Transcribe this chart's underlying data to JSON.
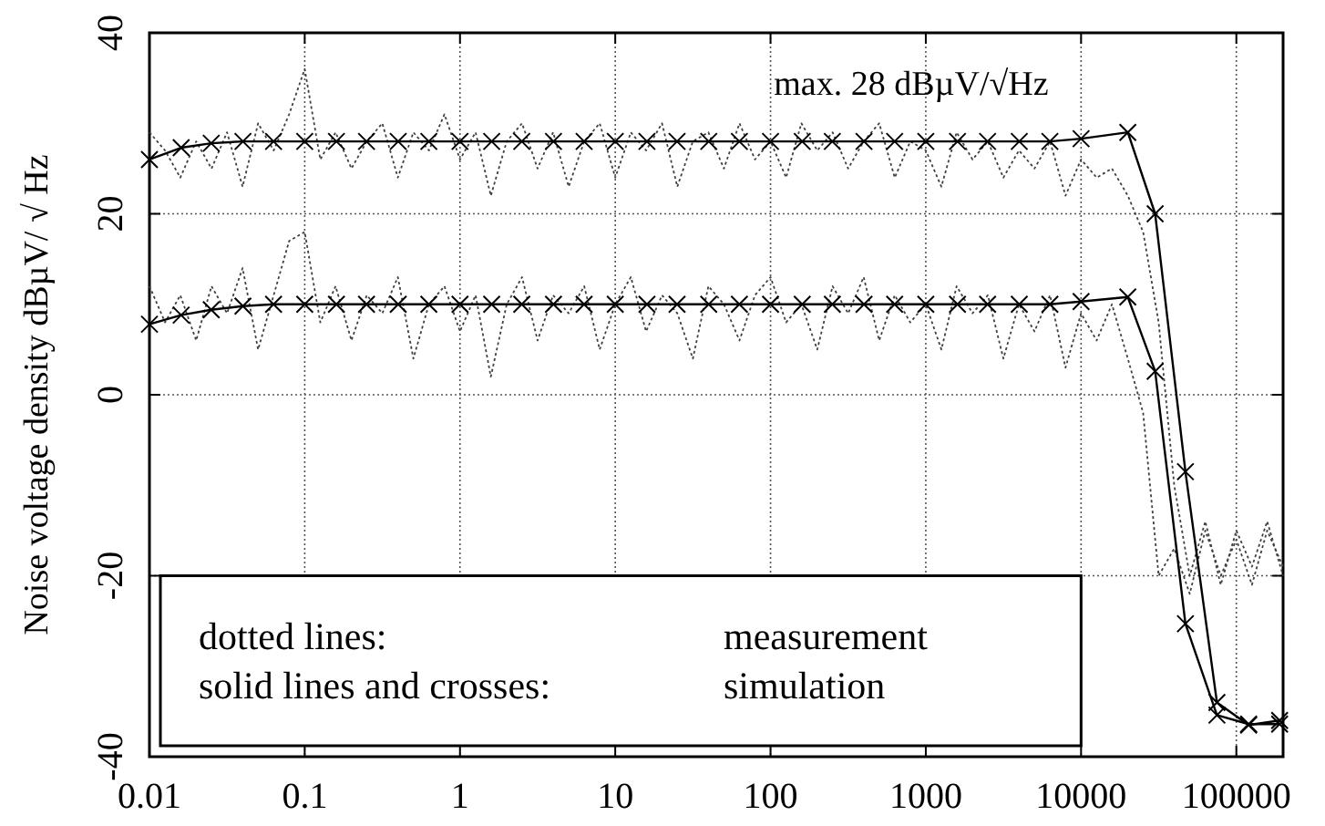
{
  "chart_data": {
    "type": "line",
    "ylabel": "Noise voltage density dBµV/ √ Hz",
    "xlim": [
      0.01,
      200000
    ],
    "ylim": [
      -40,
      40
    ],
    "xticks": [
      0.01,
      0.1,
      1,
      10,
      100,
      1000,
      10000,
      100000
    ],
    "yticks": [
      -40,
      -20,
      0,
      20,
      40
    ],
    "log": "x",
    "grid": true,
    "annotations": [
      "max. 28 dBµV/√Hz",
      "dotted lines:",
      "measurement",
      "solid lines and crosses:",
      "simulation"
    ],
    "x": [
      0.01,
      0.0126,
      0.0158,
      0.02,
      0.0251,
      0.0316,
      0.0398,
      0.0501,
      0.0631,
      0.0794,
      0.1,
      0.126,
      0.158,
      0.2,
      0.251,
      0.316,
      0.398,
      0.501,
      0.631,
      0.794,
      1,
      1.26,
      1.58,
      2,
      2.51,
      3.16,
      3.98,
      5.01,
      6.31,
      7.94,
      10,
      12.6,
      15.8,
      20,
      25.1,
      31.6,
      39.8,
      50.1,
      63.1,
      79.4,
      100,
      126,
      158,
      200,
      251,
      316,
      398,
      501,
      631,
      794,
      1000,
      1260,
      1580,
      2000,
      2510,
      3160,
      3980,
      5010,
      6310,
      7940,
      10000,
      12600,
      15800,
      20000,
      25100,
      31600,
      39800,
      50100,
      63100,
      79400,
      100000,
      126000,
      158000,
      200000
    ],
    "series": [
      {
        "color": "#404040",
        "line_style": "dotted",
        "marker": "none",
        "values": [
          29,
          27,
          24,
          28,
          25,
          29,
          23,
          30,
          27,
          31,
          36,
          26,
          29,
          25,
          28,
          30,
          24,
          29,
          27,
          31,
          26,
          29,
          22,
          28,
          30,
          25,
          29,
          23,
          28,
          30,
          24,
          29,
          27,
          30,
          23,
          28,
          29,
          25,
          30,
          26,
          28,
          24,
          30,
          27,
          29,
          25,
          28,
          30,
          24,
          28,
          27,
          23,
          29,
          26,
          28,
          24,
          27,
          25,
          28,
          22,
          26,
          24,
          25,
          22,
          18,
          8,
          -10,
          -20,
          -14,
          -21,
          -15,
          -19,
          -14,
          -20
        ]
      },
      {
        "color": "#404040",
        "line_style": "dotted",
        "marker": "none",
        "values": [
          12,
          8,
          11,
          6,
          12,
          9,
          14,
          5,
          11,
          17,
          18,
          8,
          12,
          6,
          11,
          9,
          13,
          4,
          10,
          12,
          7,
          11,
          2,
          10,
          13,
          6,
          11,
          9,
          12,
          5,
          10,
          13,
          7,
          11,
          9,
          4,
          12,
          10,
          6,
          11,
          13,
          8,
          10,
          5,
          12,
          9,
          13,
          6,
          11,
          8,
          10,
          5,
          12,
          9,
          11,
          4,
          10,
          7,
          11,
          3,
          9,
          6,
          10,
          4,
          -2,
          -20,
          -17,
          -22,
          -15,
          -20,
          -16,
          -21,
          -15,
          -19
        ]
      },
      {
        "color": "#000000",
        "line_style": "solid",
        "marker": "cross",
        "x": [
          0.01,
          0.016,
          0.025,
          0.04,
          0.063,
          0.1,
          0.16,
          0.25,
          0.4,
          0.63,
          1,
          1.6,
          2.5,
          4,
          6.3,
          10,
          16,
          25,
          40,
          63,
          100,
          160,
          250,
          400,
          630,
          1000,
          1600,
          2500,
          4000,
          6300,
          10000,
          20000,
          30000,
          47000,
          75000,
          120000,
          190000
        ],
        "values": [
          26,
          27.3,
          27.8,
          28,
          28,
          28,
          28,
          28,
          28,
          28,
          28,
          28,
          28,
          28,
          28,
          28,
          28,
          28,
          28,
          28,
          28,
          28,
          28,
          28,
          28,
          28,
          28,
          28,
          28,
          28,
          28.3,
          29,
          20,
          -8.5,
          -34,
          -36.5,
          -36
        ]
      },
      {
        "color": "#000000",
        "line_style": "solid",
        "marker": "cross",
        "x": [
          0.01,
          0.016,
          0.025,
          0.04,
          0.063,
          0.1,
          0.16,
          0.25,
          0.4,
          0.63,
          1,
          1.6,
          2.5,
          4,
          6.3,
          10,
          16,
          25,
          40,
          63,
          100,
          160,
          250,
          400,
          630,
          1000,
          1600,
          2500,
          4000,
          6300,
          10000,
          20000,
          30000,
          47000,
          75000,
          120000,
          190000
        ],
        "values": [
          7.8,
          8.8,
          9.4,
          9.8,
          10,
          10,
          10,
          10,
          10,
          10,
          10,
          10,
          10,
          10,
          10,
          10,
          10,
          10,
          10,
          10,
          10,
          10,
          10,
          10,
          10,
          10,
          10,
          10,
          10,
          10,
          10.3,
          10.8,
          2.6,
          -25.3,
          -35.4,
          -36.4,
          -36.4
        ]
      }
    ]
  }
}
